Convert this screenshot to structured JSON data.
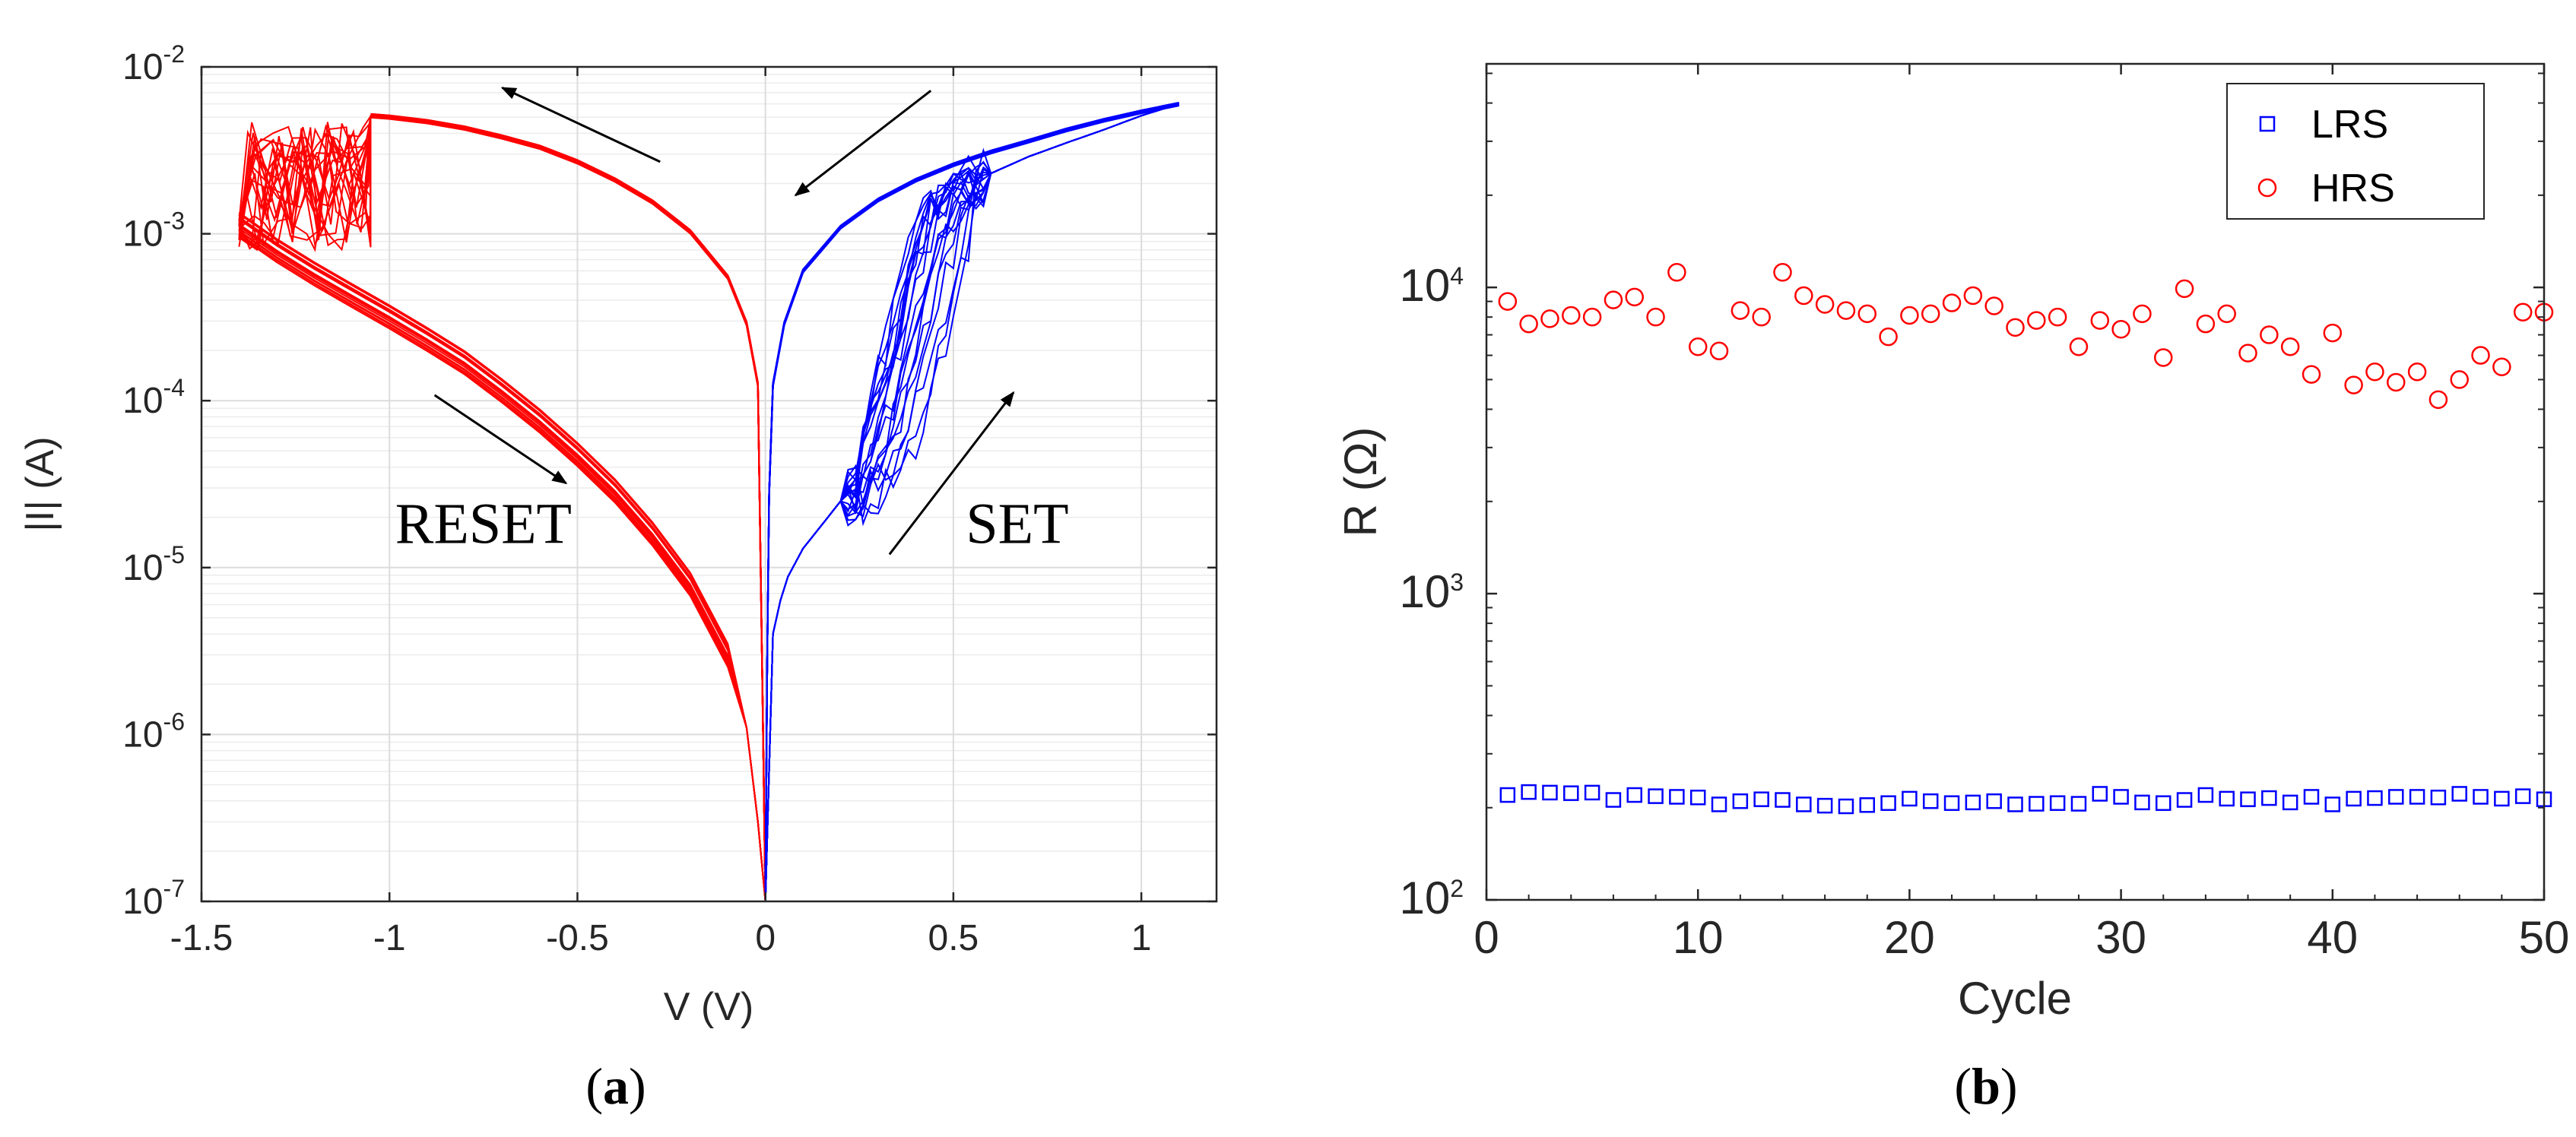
{
  "chart_data": [
    {
      "type": "line",
      "panel_label": "a",
      "caption_open": "(",
      "caption_close": ")",
      "xlabel": "V (V)",
      "ylabel": "|I| (A)",
      "xlim": [
        -1.5,
        1.2
      ],
      "ylim_log10": [
        -7,
        -2
      ],
      "x_ticks": [
        {
          "v": -1.5,
          "label": "-1.5"
        },
        {
          "v": -1,
          "label": "-1"
        },
        {
          "v": -0.5,
          "label": "-0.5"
        },
        {
          "v": 0,
          "label": "0"
        },
        {
          "v": 0.5,
          "label": "0.5"
        },
        {
          "v": 1,
          "label": "1"
        }
      ],
      "y_ticks": [
        {
          "exp": -2,
          "base": "10",
          "sup": "-2"
        },
        {
          "exp": -3,
          "base": "10",
          "sup": "-3"
        },
        {
          "exp": -4,
          "base": "10",
          "sup": "-4"
        },
        {
          "exp": -5,
          "base": "10",
          "sup": "-5"
        },
        {
          "exp": -6,
          "base": "10",
          "sup": "-6"
        },
        {
          "exp": -7,
          "base": "10",
          "sup": "-7"
        }
      ],
      "grid": true,
      "annotations": [
        {
          "text": "RESET",
          "x": -0.75,
          "y": 1.4e-05
        },
        {
          "text": "SET",
          "x": 0.67,
          "y": 1.4e-05
        }
      ],
      "arrows": [
        {
          "from": [
            -0.28,
            0.0027
          ],
          "to": [
            -0.7,
            0.0075
          ]
        },
        {
          "from": [
            0.44,
            0.0072
          ],
          "to": [
            0.08,
            0.0017
          ]
        },
        {
          "from": [
            -0.88,
            0.000108
          ],
          "to": [
            -0.53,
            3.2e-05
          ]
        },
        {
          "from": [
            0.33,
            1.2e-05
          ],
          "to": [
            0.66,
            0.000112
          ]
        }
      ],
      "series": [
        {
          "name": "RESET",
          "color": "#ff0000",
          "cycles": 20,
          "high_branch": [
            [
              -1.05,
              0.0051
            ],
            [
              -1.0,
              0.005
            ],
            [
              -0.9,
              0.0047
            ],
            [
              -0.8,
              0.0043
            ],
            [
              -0.7,
              0.0038
            ],
            [
              -0.6,
              0.0033
            ],
            [
              -0.5,
              0.0027
            ],
            [
              -0.4,
              0.0021
            ],
            [
              -0.3,
              0.00155
            ],
            [
              -0.2,
              0.00103
            ],
            [
              -0.1,
              0.00055
            ],
            [
              -0.05,
              0.00029
            ],
            [
              -0.02,
              0.000125
            ],
            [
              -0.008,
              2e-06
            ],
            [
              0,
              1e-07
            ]
          ],
          "low_branch": [
            [
              -1.4,
              0.00115
            ],
            [
              -1.3,
              0.0008
            ],
            [
              -1.2,
              0.00058
            ],
            [
              -1.1,
              0.00043
            ],
            [
              -1.0,
              0.00032
            ],
            [
              -0.9,
              0.000235
            ],
            [
              -0.8,
              0.00017
            ],
            [
              -0.7,
              0.000115
            ],
            [
              -0.6,
              7.6e-05
            ],
            [
              -0.5,
              4.8e-05
            ],
            [
              -0.4,
              2.9e-05
            ],
            [
              -0.3,
              1.6e-05
            ],
            [
              -0.2,
              8e-06
            ],
            [
              -0.1,
              3e-06
            ],
            [
              -0.05,
              1.1e-06
            ],
            [
              -0.02,
              3e-07
            ],
            [
              0,
              1e-07
            ]
          ],
          "switching_zone": {
            "v_min": -1.4,
            "v_max": -1.05,
            "i_low": 0.0008,
            "i_high": 0.0047
          }
        },
        {
          "name": "SET",
          "color": "#0000ff",
          "cycles": 20,
          "low_branch": [
            [
              0,
              1e-07
            ],
            [
              0.01,
              1.5e-06
            ],
            [
              0.02,
              4e-06
            ],
            [
              0.05,
              8e-06
            ],
            [
              0.1,
              1.3e-05
            ],
            [
              0.15,
              1.8e-05
            ],
            [
              0.2,
              2.5e-05
            ],
            [
              0.25,
              3.2e-05
            ],
            [
              0.3,
              4.8e-05
            ],
            [
              0.35,
              0.0001
            ],
            [
              0.4,
              0.00024
            ],
            [
              0.45,
              0.0007
            ],
            [
              0.5,
              0.0015
            ],
            [
              0.6,
              0.0023
            ],
            [
              0.7,
              0.0029
            ],
            [
              0.8,
              0.0035
            ],
            [
              0.9,
              0.0042
            ],
            [
              1.0,
              0.0051
            ],
            [
              1.1,
              0.006
            ]
          ],
          "high_branch": [
            [
              0,
              1e-07
            ],
            [
              0.005,
              3e-06
            ],
            [
              0.01,
              2.8e-05
            ],
            [
              0.02,
              0.000125
            ],
            [
              0.05,
              0.00029
            ],
            [
              0.1,
              0.0006
            ],
            [
              0.2,
              0.0011
            ],
            [
              0.3,
              0.0016
            ],
            [
              0.4,
              0.0021
            ],
            [
              0.5,
              0.0026
            ],
            [
              0.6,
              0.0031
            ],
            [
              0.7,
              0.0036
            ],
            [
              0.8,
              0.0042
            ],
            [
              0.9,
              0.0048
            ],
            [
              1.0,
              0.0054
            ],
            [
              1.1,
              0.006
            ]
          ]
        }
      ]
    },
    {
      "type": "scatter",
      "panel_label": "b",
      "caption_open": "(",
      "caption_close": ")",
      "xlabel": "Cycle",
      "ylabel": "R (Ω)",
      "xlim": [
        0,
        50
      ],
      "ylim_log10": [
        2,
        4.73
      ],
      "x_ticks": [
        {
          "v": 0,
          "label": "0"
        },
        {
          "v": 10,
          "label": "10"
        },
        {
          "v": 20,
          "label": "20"
        },
        {
          "v": 30,
          "label": "30"
        },
        {
          "v": 40,
          "label": "40"
        },
        {
          "v": 50,
          "label": "50"
        }
      ],
      "y_ticks": [
        {
          "exp": 2,
          "base": "10",
          "sup": "2"
        },
        {
          "exp": 3,
          "base": "10",
          "sup": "3"
        },
        {
          "exp": 4,
          "base": "10",
          "sup": "4"
        }
      ],
      "grid": false,
      "legend_position": "top-right",
      "series": [
        {
          "name": "LRS",
          "marker": "square",
          "color": "#0000ff",
          "x": [
            1,
            2,
            3,
            4,
            5,
            6,
            7,
            8,
            9,
            10,
            11,
            12,
            13,
            14,
            15,
            16,
            17,
            18,
            19,
            20,
            21,
            22,
            23,
            24,
            25,
            26,
            27,
            28,
            29,
            30,
            31,
            32,
            33,
            34,
            35,
            36,
            37,
            38,
            39,
            40,
            41,
            42,
            43,
            44,
            45,
            46,
            47,
            48,
            49,
            50
          ],
          "values": [
            220,
            225,
            224,
            223,
            224,
            212,
            220,
            218,
            217,
            216,
            205,
            210,
            213,
            212,
            205,
            203,
            202,
            204,
            207,
            214,
            210,
            207,
            208,
            210,
            205,
            206,
            207,
            206,
            222,
            217,
            208,
            207,
            212,
            220,
            214,
            213,
            215,
            208,
            217,
            205,
            214,
            215,
            217,
            217,
            216,
            222,
            217,
            214,
            218,
            213
          ]
        },
        {
          "name": "HRS",
          "marker": "circle",
          "color": "#ff0000",
          "x": [
            1,
            2,
            3,
            4,
            5,
            6,
            7,
            8,
            9,
            10,
            11,
            12,
            13,
            14,
            15,
            16,
            17,
            18,
            19,
            20,
            21,
            22,
            23,
            24,
            25,
            26,
            27,
            28,
            29,
            30,
            31,
            32,
            33,
            34,
            35,
            36,
            37,
            38,
            39,
            40,
            41,
            42,
            43,
            44,
            45,
            46,
            47,
            48,
            49,
            50
          ],
          "values": [
            9000,
            7600,
            7900,
            8100,
            8000,
            9100,
            9300,
            8000,
            11200,
            6400,
            6200,
            8400,
            8000,
            11200,
            9400,
            8800,
            8400,
            8200,
            6900,
            8100,
            8200,
            8900,
            9400,
            8700,
            7400,
            7800,
            8000,
            6400,
            7800,
            7300,
            8200,
            5900,
            9900,
            7600,
            8200,
            6100,
            7000,
            6400,
            5200,
            7100,
            4800,
            5300,
            4900,
            5300,
            4300,
            5000,
            6000,
            5500,
            8300,
            8300
          ]
        }
      ]
    }
  ]
}
